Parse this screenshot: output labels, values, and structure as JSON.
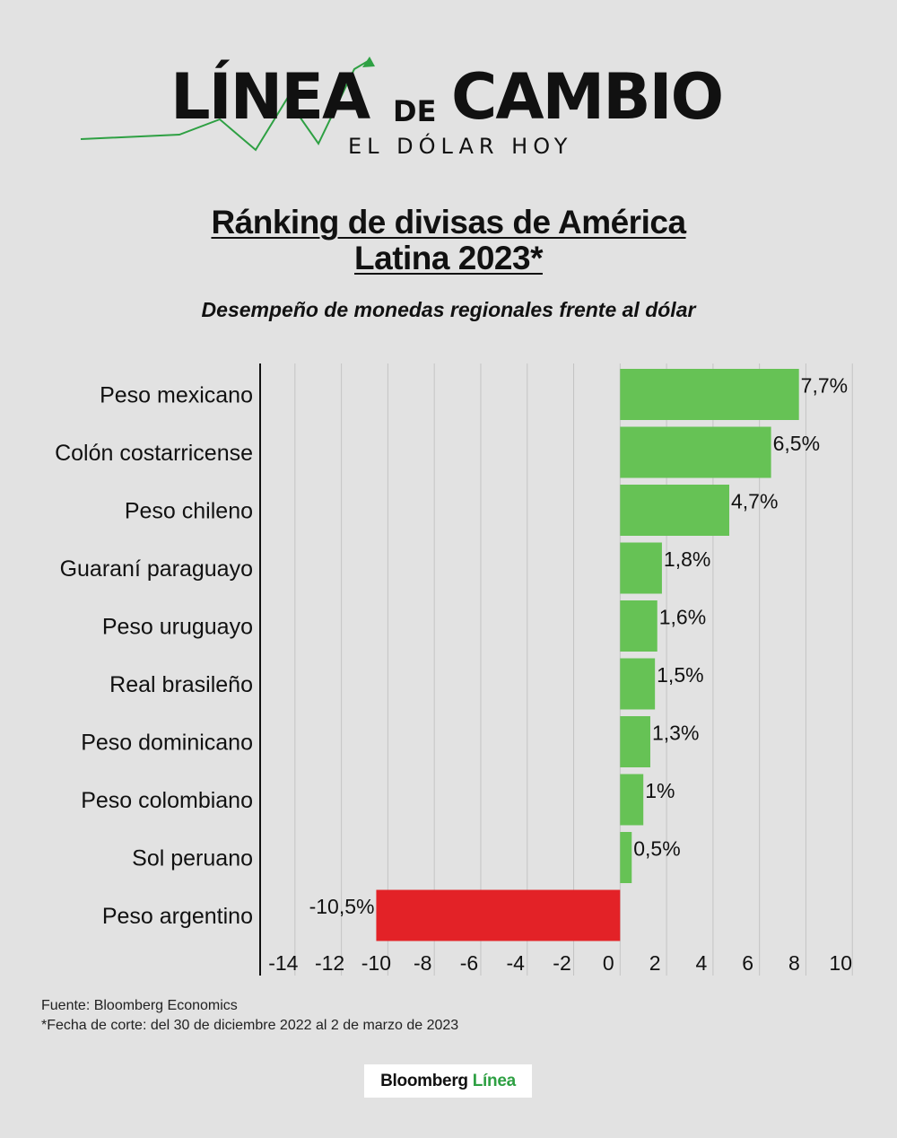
{
  "header": {
    "logo_part1": "LÍNEA",
    "logo_part2": "DE",
    "logo_part3": "CAMBIO",
    "logo_tagline": "EL DÓLAR HOY"
  },
  "title_line1": "Ránking de divisas de América",
  "title_line2": "Latina 2023*",
  "subtitle": "Desempeño de monedas regionales frente al dólar",
  "chart_data": {
    "type": "bar",
    "orientation": "horizontal",
    "categories": [
      "Peso mexicano",
      "Colón costarricense",
      "Peso chileno",
      "Guaraní paraguayo",
      "Peso uruguayo",
      "Real brasileño",
      "Peso dominicano",
      "Peso colombiano",
      "Sol peruano",
      "Peso argentino"
    ],
    "values": [
      7.7,
      6.5,
      4.7,
      1.8,
      1.6,
      1.5,
      1.3,
      1,
      0.5,
      -10.5
    ],
    "value_labels": [
      "7,7%",
      "6,5%",
      "4,7%",
      "1,8%",
      "1,6%",
      "1,5%",
      "1,3%",
      "1%",
      "0,5%",
      "-10,5%"
    ],
    "xlim": [
      -15.5,
      10.3
    ],
    "xticks": [
      -14,
      -12,
      -10,
      -8,
      -6,
      -4,
      -2,
      0,
      2,
      4,
      6,
      8,
      10
    ],
    "grid": true,
    "colors": {
      "positive": "#66c255",
      "negative": "#e32227"
    }
  },
  "footer": {
    "source": "Fuente: Bloomberg Economics",
    "note": "*Fecha de corte: del 30 de diciembre 2022 al 2 de marzo de 2023"
  },
  "brand": {
    "part1": "Bloomberg",
    "part2": "Línea"
  },
  "colors": {
    "background": "#e2e2e2",
    "accent_green": "#2ea043"
  }
}
